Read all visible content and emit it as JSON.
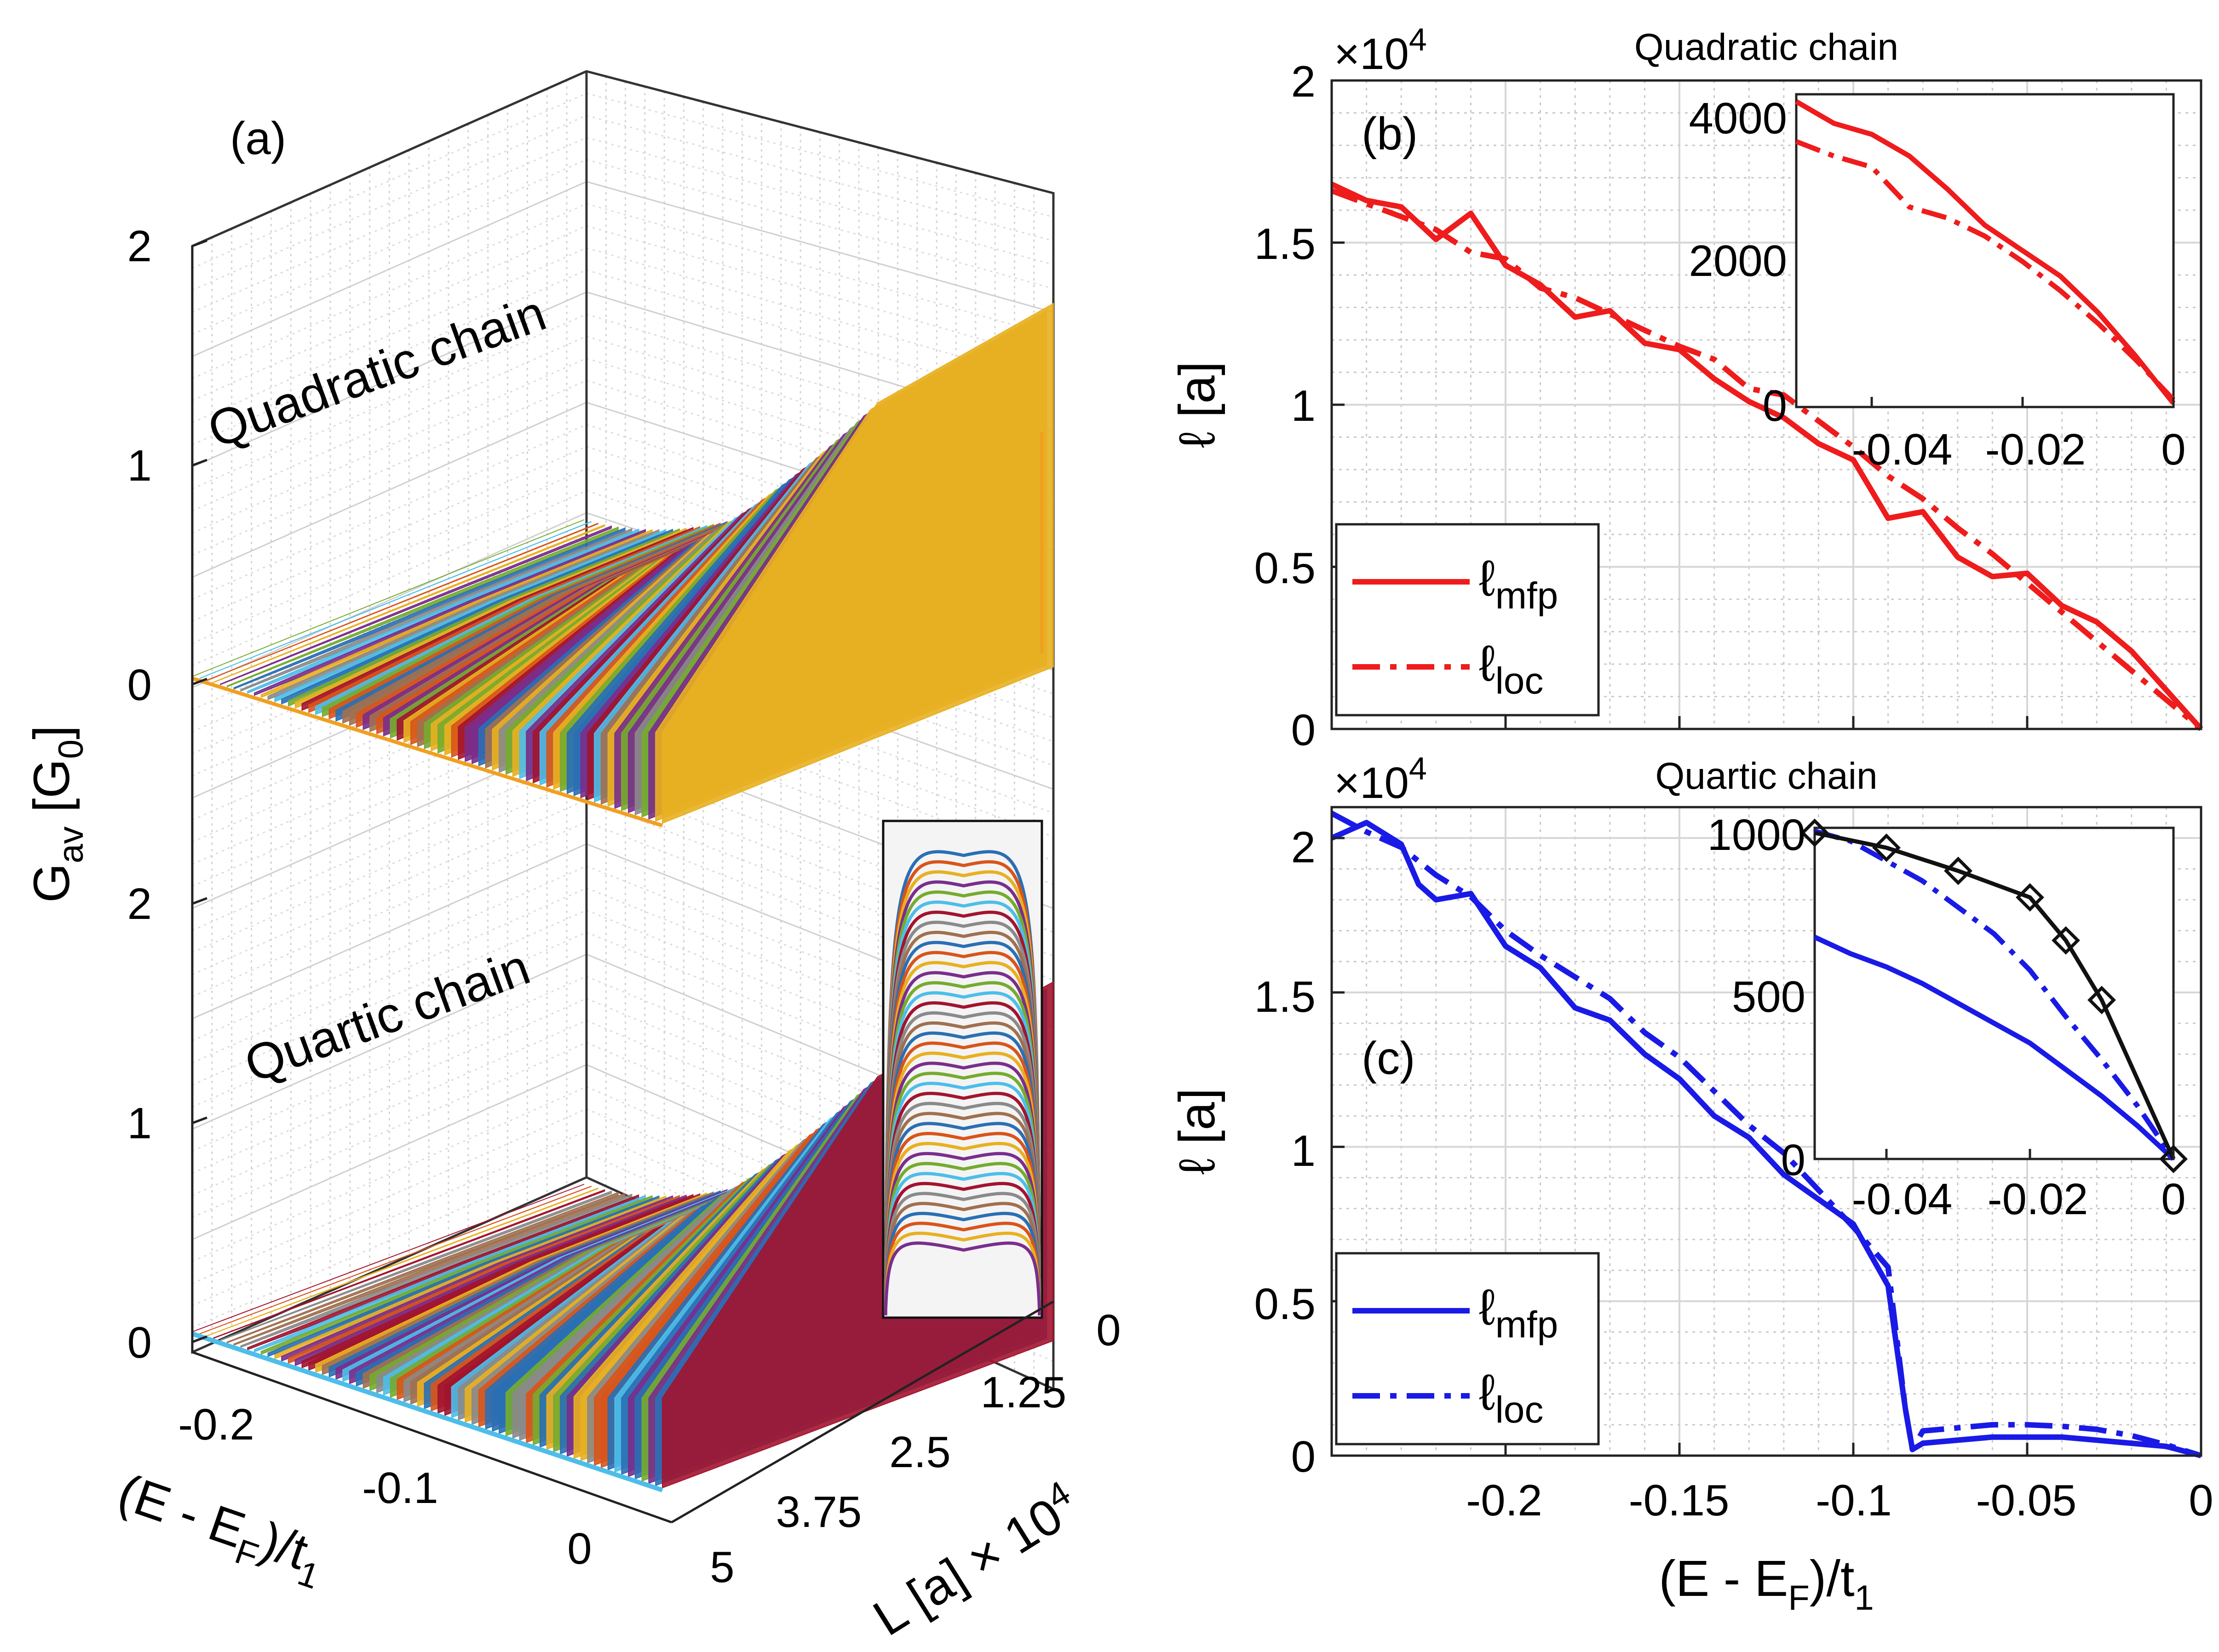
{
  "panel_a": {
    "label": "(a)",
    "ylabel_main": "G",
    "ylabel_sub": "av",
    "ylabel_unit_open": " [G",
    "ylabel_unit_sub": "0",
    "ylabel_unit_close": "]",
    "quadratic_text": "Quadratic chain",
    "quartic_text": "Quartic chain",
    "z_ticks_top": [
      "2",
      "1",
      "0"
    ],
    "z_ticks_bottom": [
      "2",
      "1",
      "0"
    ],
    "energy_ticks": [
      "-0.2",
      "-0.1",
      "0"
    ],
    "energy_label": "(E - E",
    "energy_label_sub": "F",
    "energy_label_end": ")/t",
    "energy_label_sub2": "1",
    "length_ticks": [
      "0",
      "1.25",
      "2.5",
      "3.75",
      "5"
    ],
    "length_label": "L [a] × 10",
    "length_label_exp": "4"
  },
  "panel_b": {
    "label": "(b)",
    "title": "Quadratic chain",
    "multiplier": "×10",
    "multiplier_exp": "4",
    "ylabel": "ℓ [a]",
    "yticks": [
      "2",
      "1.5",
      "1",
      "0.5",
      "0"
    ],
    "legend": {
      "mfp": "ℓ",
      "mfp_sub": "mfp",
      "loc": "ℓ",
      "loc_sub": "loc"
    },
    "inset_yticks": [
      "4000",
      "2000",
      "0"
    ],
    "inset_xticks": [
      "-0.04",
      "-0.02",
      "0"
    ],
    "color": "#ee1c1c"
  },
  "panel_c": {
    "label": "(c)",
    "title": "Quartic chain",
    "multiplier": "×10",
    "multiplier_exp": "4",
    "ylabel": "ℓ [a]",
    "yticks": [
      "2",
      "1.5",
      "1",
      "0.5",
      "0"
    ],
    "xticks": [
      "-0.2",
      "-0.15",
      "-0.1",
      "-0.05",
      "0"
    ],
    "xlabel": "(E - E",
    "xlabel_sub": "F",
    "xlabel_end": ")/t",
    "xlabel_sub2": "1",
    "legend": {
      "mfp": "ℓ",
      "mfp_sub": "mfp",
      "loc": "ℓ",
      "loc_sub": "loc"
    },
    "inset_yticks": [
      "1000",
      "500",
      "0"
    ],
    "inset_xticks": [
      "-0.04",
      "-0.02",
      "0"
    ],
    "color": "#1a1ae6"
  },
  "chart_data": [
    {
      "type": "line",
      "panel": "b",
      "title": "Quadratic chain",
      "xlabel": "(E - E_F)/t_1",
      "ylabel": "ℓ [a]",
      "xlim": [
        -0.25,
        0
      ],
      "ylim": [
        0,
        20000
      ],
      "y_multiplier": "×10^4",
      "series": [
        {
          "name": "ℓmfp",
          "style": "solid",
          "x": [
            -0.25,
            -0.24,
            -0.23,
            -0.22,
            -0.21,
            -0.2,
            -0.19,
            -0.18,
            -0.17,
            -0.16,
            -0.15,
            -0.14,
            -0.13,
            -0.12,
            -0.11,
            -0.1,
            -0.09,
            -0.08,
            -0.07,
            -0.06,
            -0.05,
            -0.04,
            -0.03,
            -0.02,
            -0.01,
            0
          ],
          "y": [
            16800,
            16300,
            16100,
            15100,
            15900,
            14300,
            13700,
            12700,
            12900,
            11900,
            11700,
            10800,
            10100,
            9600,
            8800,
            8300,
            6500,
            6700,
            5300,
            4700,
            4800,
            3800,
            3300,
            2400,
            1200,
            0
          ]
        },
        {
          "name": "ℓloc",
          "style": "dashdot",
          "x": [
            -0.25,
            -0.24,
            -0.23,
            -0.22,
            -0.21,
            -0.2,
            -0.19,
            -0.18,
            -0.17,
            -0.16,
            -0.15,
            -0.14,
            -0.13,
            -0.12,
            -0.11,
            -0.1,
            -0.09,
            -0.08,
            -0.07,
            -0.06,
            -0.05,
            -0.04,
            -0.03,
            -0.02,
            -0.01,
            0
          ],
          "y": [
            16600,
            16200,
            15800,
            15400,
            14700,
            14500,
            13600,
            13300,
            12800,
            12300,
            11800,
            11400,
            10500,
            10300,
            9500,
            8700,
            7800,
            7100,
            6200,
            5400,
            4500,
            3600,
            2700,
            1800,
            900,
            0
          ]
        }
      ],
      "inset": {
        "xlim": [
          -0.05,
          0
        ],
        "ylim": [
          0,
          4300
        ],
        "series": [
          {
            "name": "ℓmfp",
            "style": "solid",
            "x": [
              -0.05,
              -0.045,
              -0.04,
              -0.035,
              -0.03,
              -0.025,
              -0.02,
              -0.015,
              -0.01,
              -0.005,
              0
            ],
            "y": [
              4200,
              3900,
              3750,
              3450,
              3000,
              2500,
              2150,
              1800,
              1300,
              700,
              50
            ]
          },
          {
            "name": "ℓloc",
            "style": "dashdot",
            "x": [
              -0.05,
              -0.045,
              -0.04,
              -0.035,
              -0.03,
              -0.025,
              -0.02,
              -0.015,
              -0.01,
              -0.005,
              0
            ],
            "y": [
              3650,
              3450,
              3300,
              2750,
              2600,
              2350,
              2000,
              1600,
              1150,
              650,
              100
            ]
          }
        ]
      }
    },
    {
      "type": "line",
      "panel": "c",
      "title": "Quartic chain",
      "xlabel": "(E - E_F)/t_1",
      "ylabel": "ℓ [a]",
      "xlim": [
        -0.25,
        0
      ],
      "ylim": [
        0,
        21000
      ],
      "y_multiplier": "×10^4",
      "series": [
        {
          "name": "ℓmfp",
          "style": "solid",
          "x": [
            -0.25,
            -0.24,
            -0.23,
            -0.225,
            -0.22,
            -0.21,
            -0.2,
            -0.19,
            -0.18,
            -0.17,
            -0.16,
            -0.15,
            -0.14,
            -0.13,
            -0.12,
            -0.11,
            -0.1,
            -0.09,
            -0.085,
            -0.083,
            -0.08,
            -0.07,
            -0.06,
            -0.05,
            -0.04,
            -0.03,
            -0.02,
            -0.01,
            0
          ],
          "y": [
            20000,
            20500,
            19800,
            18500,
            18000,
            18200,
            16500,
            15800,
            14500,
            14100,
            13000,
            12200,
            11000,
            10300,
            9100,
            8300,
            7500,
            5500,
            1500,
            200,
            400,
            500,
            600,
            600,
            600,
            500,
            400,
            300,
            0
          ]
        },
        {
          "name": "ℓloc",
          "style": "dashdot",
          "x": [
            -0.25,
            -0.24,
            -0.23,
            -0.22,
            -0.21,
            -0.2,
            -0.19,
            -0.18,
            -0.17,
            -0.16,
            -0.15,
            -0.14,
            -0.13,
            -0.12,
            -0.11,
            -0.1,
            -0.09,
            -0.085,
            -0.083,
            -0.08,
            -0.07,
            -0.06,
            -0.05,
            -0.04,
            -0.03,
            -0.02,
            -0.01,
            0
          ],
          "y": [
            20800,
            20200,
            19700,
            18800,
            18100,
            17000,
            16200,
            15500,
            14800,
            13700,
            12900,
            11800,
            10700,
            9800,
            8600,
            7400,
            6100,
            1500,
            200,
            800,
            900,
            1000,
            1000,
            950,
            850,
            650,
            350,
            0
          ]
        }
      ],
      "inset": {
        "xlim": [
          -0.05,
          0
        ],
        "ylim": [
          0,
          1000
        ],
        "series": [
          {
            "name": "ℓmfp",
            "style": "solid",
            "x": [
              -0.05,
              -0.045,
              -0.04,
              -0.035,
              -0.03,
              -0.025,
              -0.02,
              -0.015,
              -0.01,
              -0.005,
              0
            ],
            "y": [
              670,
              620,
              580,
              530,
              470,
              410,
              350,
              270,
              190,
              100,
              0
            ]
          },
          {
            "name": "ℓloc",
            "style": "dashdot",
            "x": [
              -0.05,
              -0.045,
              -0.04,
              -0.035,
              -0.03,
              -0.025,
              -0.02,
              -0.015,
              -0.01,
              -0.005,
              0
            ],
            "y": [
              990,
              960,
              900,
              840,
              760,
              680,
              570,
              430,
              300,
              160,
              0
            ]
          },
          {
            "style": "markers",
            "x": [
              -0.05,
              -0.04,
              -0.03,
              -0.02,
              -0.015,
              -0.01,
              0
            ],
            "y": [
              985,
              940,
              870,
              790,
              660,
              480,
              0
            ]
          }
        ]
      }
    }
  ]
}
